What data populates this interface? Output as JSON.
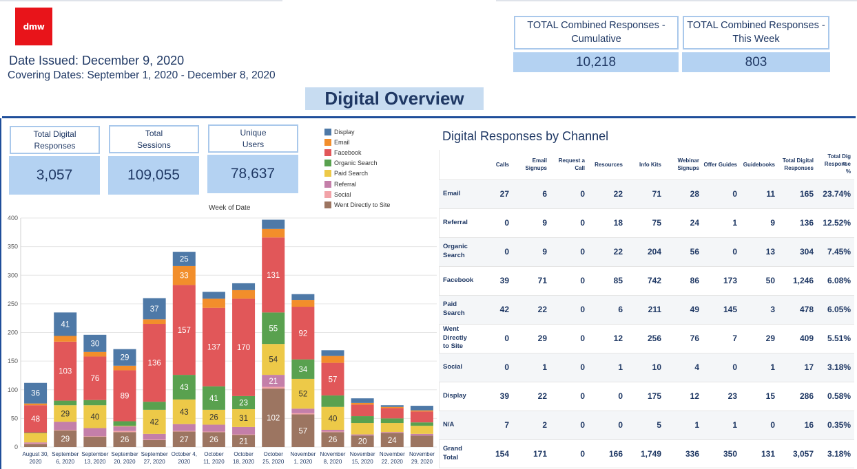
{
  "brand": {
    "logo_text": "dmw",
    "logo_color": "#e8141a"
  },
  "header": {
    "date_issued": "Date Issued: December 9, 2020",
    "covering_dates": "Covering Dates: September 1, 2020 - December 8, 2020",
    "title": "Digital Overview"
  },
  "totals": {
    "cumulative_label_line1": "TOTAL Combined Responses -",
    "cumulative_label_line2": "Cumulative",
    "cumulative_value": "10,218",
    "this_week_label_line1": "TOTAL Combined Responses -",
    "this_week_label_line2": "This Week",
    "this_week_value": "803"
  },
  "kpis": [
    {
      "label_line1": "Total Digital",
      "label_line2": "Responses",
      "value": "3,057"
    },
    {
      "label_line1": "Total",
      "label_line2": "Sessions",
      "value": "109,055"
    },
    {
      "label_line1": "Unique",
      "label_line2": "Users",
      "value": "78,637"
    }
  ],
  "colors": {
    "accent": "#1f4e9a",
    "kpi_fill": "#b4d2f2",
    "kpi_border": "#a9c8eb",
    "text": "#1f3864"
  },
  "chart_data": {
    "type": "bar",
    "stacked": true,
    "xlabel": "Week of Date",
    "ylim": [
      0,
      400
    ],
    "yticks": [
      0,
      50,
      100,
      150,
      200,
      250,
      300,
      350,
      400
    ],
    "grid": true,
    "legend_position": "top-right",
    "categories": [
      [
        "August 30,",
        "2020"
      ],
      [
        "September",
        "6, 2020"
      ],
      [
        "September",
        "13, 2020"
      ],
      [
        "September",
        "20, 2020"
      ],
      [
        "September",
        "27, 2020"
      ],
      [
        "October 4,",
        "2020"
      ],
      [
        "October",
        "11, 2020"
      ],
      [
        "October",
        "18, 2020"
      ],
      [
        "October",
        "25, 2020"
      ],
      [
        "November",
        "1, 2020"
      ],
      [
        "November",
        "8, 2020"
      ],
      [
        "November",
        "15, 2020"
      ],
      [
        "November",
        "22, 2020"
      ],
      [
        "November",
        "29, 2020"
      ]
    ],
    "series": [
      {
        "name": "Went Directly to Site",
        "color": "#9c7561",
        "values": [
          5,
          29,
          18,
          26,
          12,
          27,
          26,
          21,
          102,
          57,
          26,
          20,
          24,
          20
        ],
        "labels": [
          null,
          "29",
          null,
          "26",
          null,
          "27",
          "26",
          "21",
          "102",
          "57",
          "26",
          "20",
          "24",
          null
        ]
      },
      {
        "name": "Social",
        "color": "#f2a3a8",
        "values": [
          1,
          1,
          1,
          2,
          1,
          1,
          1,
          1,
          3,
          2,
          1,
          0,
          0,
          0
        ],
        "labels": [
          null,
          null,
          null,
          null,
          null,
          null,
          null,
          null,
          null,
          null,
          null,
          null,
          null,
          null
        ]
      },
      {
        "name": "Referral",
        "color": "#c47fa9",
        "values": [
          2,
          14,
          14,
          8,
          10,
          12,
          12,
          13,
          21,
          8,
          3,
          2,
          2,
          3
        ],
        "labels": [
          null,
          null,
          null,
          null,
          null,
          null,
          null,
          null,
          "21",
          null,
          null,
          null,
          null,
          null
        ]
      },
      {
        "name": "Paid Search",
        "color": "#edc948",
        "values": [
          16,
          29,
          40,
          1,
          42,
          43,
          26,
          31,
          54,
          52,
          40,
          20,
          16,
          14
        ],
        "labels": [
          null,
          "29",
          "40",
          null,
          "42",
          "43",
          "26",
          "31",
          "54",
          "52",
          "40",
          null,
          null,
          null
        ]
      },
      {
        "name": "Organic Search",
        "color": "#59a14f",
        "values": [
          1,
          8,
          9,
          8,
          14,
          43,
          41,
          23,
          55,
          34,
          20,
          12,
          8,
          6
        ],
        "labels": [
          null,
          null,
          null,
          null,
          null,
          "43",
          "41",
          "23",
          "55",
          "34",
          null,
          null,
          null,
          null
        ]
      },
      {
        "name": "Facebook",
        "color": "#e15759",
        "values": [
          48,
          103,
          76,
          89,
          136,
          157,
          137,
          170,
          131,
          92,
          57,
          20,
          18,
          19
        ],
        "labels": [
          "48",
          "103",
          "76",
          "89",
          "136",
          "157",
          "137",
          "170",
          "131",
          "92",
          "57",
          null,
          null,
          null
        ]
      },
      {
        "name": "Email",
        "color": "#f28e2b",
        "values": [
          3,
          10,
          8,
          8,
          8,
          33,
          16,
          15,
          15,
          12,
          12,
          3,
          2,
          2
        ],
        "labels": [
          null,
          null,
          null,
          null,
          null,
          "33",
          null,
          null,
          null,
          null,
          null,
          null,
          null,
          null
        ]
      },
      {
        "name": "Display",
        "color": "#4e79a7",
        "values": [
          36,
          41,
          30,
          29,
          37,
          25,
          12,
          12,
          16,
          10,
          10,
          8,
          3,
          8
        ],
        "labels": [
          "36",
          "41",
          "30",
          "29",
          "37",
          "25",
          null,
          null,
          null,
          null,
          null,
          null,
          null,
          null
        ]
      }
    ]
  },
  "table": {
    "title": "Digital Responses by Channel",
    "columns": [
      [
        "Calls"
      ],
      [
        "Email",
        "Signups"
      ],
      [
        "Request a",
        "Call"
      ],
      [
        "Resources"
      ],
      [
        "Info Kits"
      ],
      [
        "Webinar",
        "Signups"
      ],
      [
        "Offer Guides"
      ],
      [
        "Guidebooks"
      ],
      [
        "Total Digital",
        "Responses"
      ],
      [
        "Total Dig",
        "Response",
        "%"
      ]
    ],
    "rows": [
      {
        "label": [
          "Email"
        ],
        "values": [
          "27",
          "6",
          "0",
          "22",
          "71",
          "28",
          "0",
          "11",
          "165",
          "23.74%"
        ]
      },
      {
        "label": [
          "Referral"
        ],
        "values": [
          "0",
          "9",
          "0",
          "18",
          "75",
          "24",
          "1",
          "9",
          "136",
          "12.52%"
        ]
      },
      {
        "label": [
          "Organic",
          "Search"
        ],
        "values": [
          "0",
          "9",
          "0",
          "22",
          "204",
          "56",
          "0",
          "13",
          "304",
          "7.45%"
        ]
      },
      {
        "label": [
          "Facebook"
        ],
        "values": [
          "39",
          "71",
          "0",
          "85",
          "742",
          "86",
          "173",
          "50",
          "1,246",
          "6.08%"
        ]
      },
      {
        "label": [
          "Paid",
          "Search"
        ],
        "values": [
          "42",
          "22",
          "0",
          "6",
          "211",
          "49",
          "145",
          "3",
          "478",
          "6.05%"
        ]
      },
      {
        "label": [
          "Went",
          "Directly",
          "to Site"
        ],
        "values": [
          "0",
          "29",
          "0",
          "12",
          "256",
          "76",
          "7",
          "29",
          "409",
          "5.51%"
        ]
      },
      {
        "label": [
          "Social"
        ],
        "values": [
          "0",
          "1",
          "0",
          "1",
          "10",
          "4",
          "0",
          "1",
          "17",
          "3.18%"
        ]
      },
      {
        "label": [
          "Display"
        ],
        "values": [
          "39",
          "22",
          "0",
          "0",
          "175",
          "12",
          "23",
          "15",
          "286",
          "0.58%"
        ]
      },
      {
        "label": [
          "N/A"
        ],
        "values": [
          "7",
          "2",
          "0",
          "0",
          "5",
          "1",
          "1",
          "0",
          "16",
          "0.35%"
        ]
      },
      {
        "label": [
          "Grand",
          "Total"
        ],
        "values": [
          "154",
          "171",
          "0",
          "166",
          "1,749",
          "336",
          "350",
          "131",
          "3,057",
          "3.18%"
        ]
      }
    ]
  }
}
